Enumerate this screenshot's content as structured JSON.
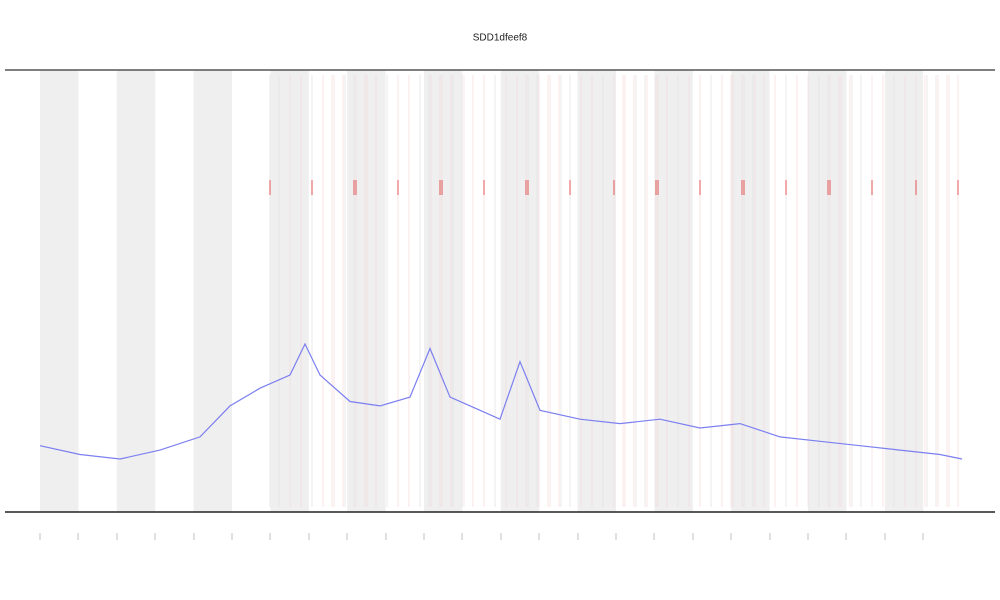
{
  "chart_data": {
    "type": "line",
    "title": "SDD1dfeef8",
    "x": [
      40,
      80,
      120,
      160,
      200,
      230,
      260,
      290,
      305,
      320,
      350,
      380,
      410,
      430,
      450,
      480,
      500,
      520,
      540,
      580,
      620,
      660,
      700,
      740,
      780,
      820,
      860,
      900,
      940,
      962
    ],
    "series": [
      {
        "color": "#7b7ff0",
        "values": [
          15,
          13,
          12,
          14,
          17,
          24,
          28,
          31,
          38,
          31,
          25,
          24,
          26,
          37,
          26,
          23,
          21,
          34,
          23,
          21,
          20,
          21,
          19,
          20,
          17,
          16,
          15,
          14,
          13,
          12
        ]
      }
    ],
    "xlim": [
      5,
      995
    ],
    "ylim": [
      0,
      100
    ],
    "xticks": [
      40,
      78,
      117,
      155,
      194,
      232,
      270,
      309,
      347,
      386,
      424,
      462,
      501,
      539,
      578,
      616,
      654,
      693,
      731,
      770,
      808,
      846,
      885,
      923
    ]
  }
}
